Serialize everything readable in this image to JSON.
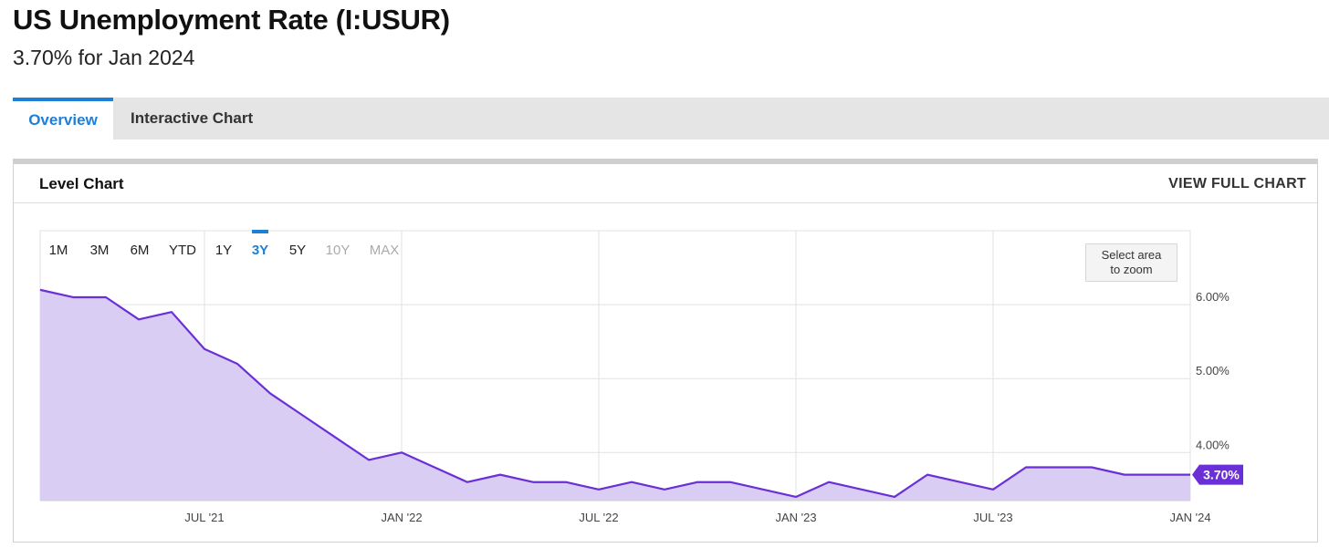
{
  "header": {
    "title": "US Unemployment Rate (I:USUR)",
    "subtitle": "3.70% for Jan 2024"
  },
  "tabs": [
    {
      "label": "Overview",
      "active": true
    },
    {
      "label": "Interactive Chart",
      "active": false
    }
  ],
  "panel": {
    "title": "Level Chart",
    "view_full_label": "VIEW FULL CHART",
    "zoom_hint_line1": "Select area",
    "zoom_hint_line2": "to zoom"
  },
  "range_buttons": [
    {
      "label": "1M",
      "state": "normal"
    },
    {
      "label": "3M",
      "state": "normal"
    },
    {
      "label": "6M",
      "state": "normal"
    },
    {
      "label": "YTD",
      "state": "normal"
    },
    {
      "label": "1Y",
      "state": "normal"
    },
    {
      "label": "3Y",
      "state": "active"
    },
    {
      "label": "5Y",
      "state": "normal"
    },
    {
      "label": "10Y",
      "state": "disabled"
    },
    {
      "label": "MAX",
      "state": "disabled"
    }
  ],
  "colors": {
    "accent": "#1e7fd6",
    "line": "#6a2fd6",
    "area": "#d9cdf3",
    "badge": "#6a2fd6"
  },
  "chart_data": {
    "type": "area",
    "x": [
      "2021-02",
      "2021-03",
      "2021-04",
      "2021-05",
      "2021-06",
      "2021-07",
      "2021-08",
      "2021-09",
      "2021-10",
      "2021-11",
      "2021-12",
      "2022-01",
      "2022-02",
      "2022-03",
      "2022-04",
      "2022-05",
      "2022-06",
      "2022-07",
      "2022-08",
      "2022-09",
      "2022-10",
      "2022-11",
      "2022-12",
      "2023-01",
      "2023-02",
      "2023-03",
      "2023-04",
      "2023-05",
      "2023-06",
      "2023-07",
      "2023-08",
      "2023-09",
      "2023-10",
      "2023-11",
      "2023-12",
      "2024-01"
    ],
    "values": [
      6.2,
      6.1,
      6.1,
      5.8,
      5.9,
      5.4,
      5.2,
      4.8,
      4.5,
      4.2,
      3.9,
      4.0,
      3.8,
      3.6,
      3.7,
      3.6,
      3.6,
      3.5,
      3.6,
      3.5,
      3.6,
      3.6,
      3.5,
      3.4,
      3.6,
      3.5,
      3.4,
      3.7,
      3.6,
      3.5,
      3.8,
      3.8,
      3.8,
      3.7,
      3.7,
      3.7
    ],
    "x_ticks": [
      {
        "x": "2021-07",
        "label": "JUL '21"
      },
      {
        "x": "2022-01",
        "label": "JAN '22"
      },
      {
        "x": "2022-07",
        "label": "JUL '22"
      },
      {
        "x": "2023-01",
        "label": "JAN '23"
      },
      {
        "x": "2023-07",
        "label": "JUL '23"
      },
      {
        "x": "2024-01",
        "label": "JAN '24"
      }
    ],
    "y_ticks": [
      {
        "value": 4,
        "label": "4.00%"
      },
      {
        "value": 5,
        "label": "5.00%"
      },
      {
        "value": 6,
        "label": "6.00%"
      }
    ],
    "last_value_label": "3.70%",
    "grid": true
  }
}
